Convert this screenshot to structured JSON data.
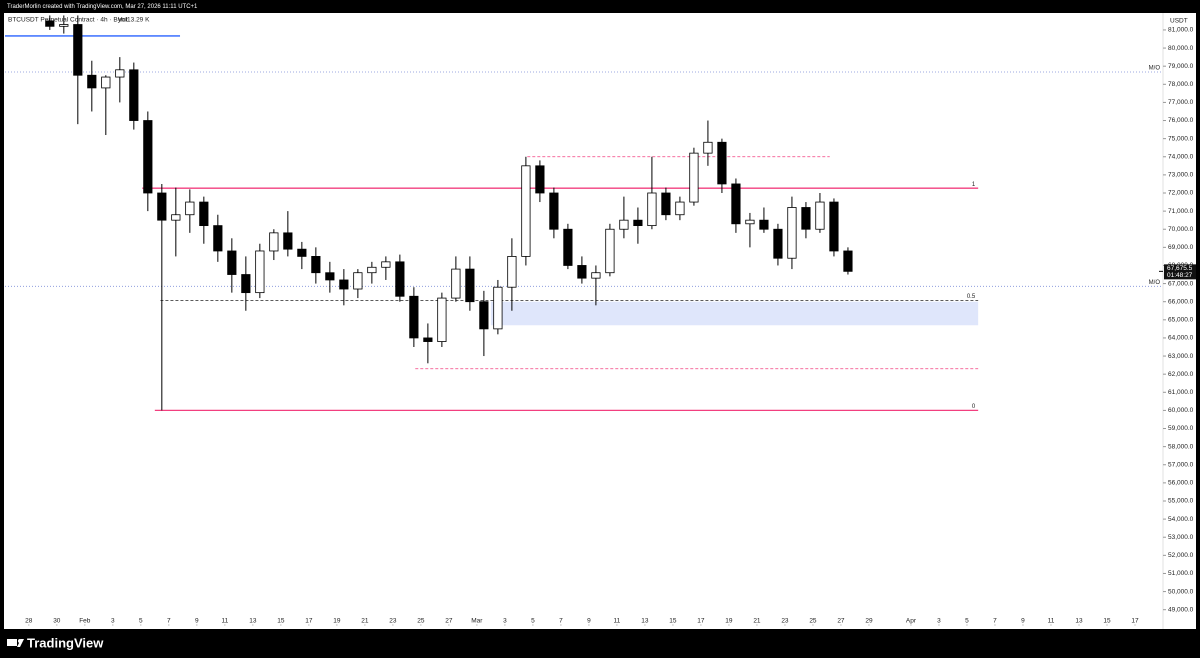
{
  "chart_data": {
    "type": "candlestick",
    "watermark": "TraderMorlin created with TradingView.com, Mar 27, 2026 11:11 UTC+1",
    "title": "BTCUSDT Perpetual Contract · 4h · Bybit",
    "volume_label": "Vol13.29 K",
    "currency": "USDT",
    "brand": "TradingView",
    "up_color": "#ffffff",
    "down_color": "#000000",
    "outline_color": "#000000",
    "x": [
      1.5,
      2.5,
      3.5,
      4.5,
      5.5,
      6.5,
      7.5,
      8.5,
      9.5,
      10.5,
      11.5,
      12.5,
      13.5,
      14.5,
      15.5,
      16.5,
      17.5,
      18.5,
      19.5,
      20.5,
      21.5,
      22.5,
      23.5,
      24.5,
      25.5,
      26.5,
      27.5,
      28.5,
      29.5,
      30.5,
      31.5,
      32.5,
      33.5,
      34.5,
      35.5,
      36.5,
      37.5,
      38.5,
      39.5,
      40.5,
      41.5,
      42.5,
      43.5,
      44.5,
      45.5,
      46.5,
      47.5,
      48.5,
      49.5,
      50.5,
      51.5,
      52.5,
      53.5,
      54.5,
      55.5,
      56.5,
      57.5,
      58.5
    ],
    "open": [
      81500,
      81200,
      81300,
      78500,
      77800,
      78400,
      78800,
      76000,
      72000,
      70500,
      70800,
      71500,
      70200,
      68800,
      67500,
      66500,
      68800,
      69800,
      68900,
      68500,
      67600,
      67200,
      66700,
      67600,
      67900,
      68200,
      66300,
      64000,
      63800,
      66200,
      67800,
      66000,
      64500,
      66800,
      68500,
      73500,
      72000,
      70000,
      68000,
      67300,
      67600,
      70000,
      70500,
      70200,
      72000,
      70800,
      71500,
      74200,
      74800,
      72500,
      70300,
      70500,
      70000,
      68400,
      71200,
      70000,
      71500,
      68800
    ],
    "high": [
      81800,
      81800,
      81800,
      79300,
      78500,
      79500,
      79200,
      76500,
      72500,
      72300,
      72200,
      71800,
      70800,
      69500,
      68500,
      69200,
      70000,
      71000,
      69300,
      69000,
      68200,
      67800,
      67800,
      68200,
      68500,
      68600,
      66800,
      64800,
      66500,
      68500,
      68500,
      66600,
      67200,
      69500,
      74000,
      73800,
      72300,
      70300,
      68500,
      68000,
      70300,
      71800,
      71200,
      74000,
      72300,
      71800,
      74500,
      76000,
      75000,
      72800,
      70900,
      71200,
      70300,
      71800,
      71500,
      72000,
      71700,
      69000
    ],
    "low": [
      81000,
      80800,
      75800,
      76500,
      75200,
      77000,
      75500,
      71000,
      60000,
      68500,
      69800,
      69200,
      68200,
      66500,
      65500,
      66200,
      68300,
      68500,
      67800,
      67000,
      66500,
      65800,
      66200,
      67000,
      67200,
      66000,
      63500,
      62600,
      63500,
      66000,
      65500,
      63000,
      64200,
      65500,
      68000,
      71500,
      69500,
      67800,
      67000,
      65800,
      67400,
      69500,
      69200,
      70000,
      70500,
      70500,
      71300,
      73500,
      72000,
      69800,
      69000,
      69800,
      68000,
      67800,
      69500,
      69800,
      68500,
      67500
    ],
    "close": [
      81200,
      81300,
      78500,
      77800,
      78400,
      78800,
      76000,
      72000,
      70500,
      70800,
      71500,
      70200,
      68800,
      67500,
      66500,
      68800,
      69800,
      68900,
      68500,
      67600,
      67200,
      66700,
      67600,
      67900,
      68200,
      66300,
      64000,
      63800,
      66200,
      67800,
      66000,
      64500,
      66800,
      68500,
      73500,
      72000,
      70000,
      68000,
      67300,
      67600,
      70000,
      70500,
      70200,
      72000,
      70800,
      71500,
      74200,
      74800,
      72500,
      70300,
      70500,
      70000,
      68400,
      71200,
      70000,
      71500,
      68800,
      67675.5
    ],
    "price_tag": {
      "value": 67675.5,
      "label": "67,675.5",
      "timer": "01:48:27"
    },
    "levels": [
      {
        "value": 80670,
        "x": [
          -1.7,
          10.8
        ],
        "color": "#2962ff",
        "style": "solid"
      },
      {
        "value": 78680,
        "x": [
          -1.7,
          81
        ],
        "color": "#7f8fd8",
        "style": "dotted",
        "label": "M/O"
      },
      {
        "value": 74000,
        "x": [
          35.6,
          57.2
        ],
        "color": "#f23f7f",
        "style": "dashed"
      },
      {
        "value": 72266,
        "x": [
          8.1,
          67.8
        ],
        "color": "#f23f7f",
        "style": "solid",
        "label": "1"
      },
      {
        "value": 66850,
        "x": [
          -1.7,
          81
        ],
        "color": "#7f8fd8",
        "style": "dotted",
        "label": "M/O"
      },
      {
        "value": 66070,
        "x": [
          9.4,
          67.8
        ],
        "color": "#444444",
        "style": "dashed",
        "label": "0.5"
      },
      {
        "value": 62300,
        "x": [
          27.6,
          67.8
        ],
        "color": "#f23f7f",
        "style": "dashed"
      },
      {
        "value": 60000,
        "x": [
          9.0,
          67.8
        ],
        "color": "#f23f7f",
        "style": "solid",
        "label": "0"
      }
    ],
    "band": {
      "from": 64700,
      "to": 66000,
      "x": [
        33,
        67.8
      ],
      "color": "#dfe6fb"
    },
    "xlim": [
      -1.7,
      81
    ],
    "ylim": [
      48100,
      81880
    ],
    "xticks": [
      {
        "value": 0,
        "label": "28"
      },
      {
        "value": 2,
        "label": "30"
      },
      {
        "value": 4,
        "label": "Feb"
      },
      {
        "value": 6,
        "label": "3"
      },
      {
        "value": 8,
        "label": "5"
      },
      {
        "value": 10,
        "label": "7"
      },
      {
        "value": 12,
        "label": "9"
      },
      {
        "value": 14,
        "label": "11"
      },
      {
        "value": 16,
        "label": "13"
      },
      {
        "value": 18,
        "label": "15"
      },
      {
        "value": 20,
        "label": "17"
      },
      {
        "value": 22,
        "label": "19"
      },
      {
        "value": 24,
        "label": "21"
      },
      {
        "value": 26,
        "label": "23"
      },
      {
        "value": 28,
        "label": "25"
      },
      {
        "value": 30,
        "label": "27"
      },
      {
        "value": 32,
        "label": "Mar"
      },
      {
        "value": 34,
        "label": "3"
      },
      {
        "value": 36,
        "label": "5"
      },
      {
        "value": 38,
        "label": "7"
      },
      {
        "value": 40,
        "label": "9"
      },
      {
        "value": 42,
        "label": "11"
      },
      {
        "value": 44,
        "label": "13"
      },
      {
        "value": 46,
        "label": "15"
      },
      {
        "value": 48,
        "label": "17"
      },
      {
        "value": 50,
        "label": "19"
      },
      {
        "value": 52,
        "label": "21"
      },
      {
        "value": 54,
        "label": "23"
      },
      {
        "value": 56,
        "label": "25"
      },
      {
        "value": 58,
        "label": "27"
      },
      {
        "value": 60,
        "label": "29"
      },
      {
        "value": 63,
        "label": "Apr"
      },
      {
        "value": 65,
        "label": "3"
      },
      {
        "value": 67,
        "label": "5"
      },
      {
        "value": 69,
        "label": "7"
      },
      {
        "value": 71,
        "label": "9"
      },
      {
        "value": 73,
        "label": "11"
      },
      {
        "value": 75,
        "label": "13"
      },
      {
        "value": 77,
        "label": "15"
      },
      {
        "value": 79,
        "label": "17"
      }
    ],
    "yticks": [
      {
        "value": 81000,
        "label": "81,000.0"
      },
      {
        "value": 80000,
        "label": "80,000.0"
      },
      {
        "value": 79000,
        "label": "79,000.0"
      },
      {
        "value": 78000,
        "label": "78,000.0"
      },
      {
        "value": 77000,
        "label": "77,000.0"
      },
      {
        "value": 76000,
        "label": "76,000.0"
      },
      {
        "value": 75000,
        "label": "75,000.0"
      },
      {
        "value": 74000,
        "label": "74,000.0"
      },
      {
        "value": 73000,
        "label": "73,000.0"
      },
      {
        "value": 72000,
        "label": "72,000.0"
      },
      {
        "value": 71000,
        "label": "71,000.0"
      },
      {
        "value": 70000,
        "label": "70,000.0"
      },
      {
        "value": 69000,
        "label": "69,000.0"
      },
      {
        "value": 68000,
        "label": "68,000.0"
      },
      {
        "value": 67000,
        "label": "67,000.0"
      },
      {
        "value": 66000,
        "label": "66,000.0"
      },
      {
        "value": 65000,
        "label": "65,000.0"
      },
      {
        "value": 64000,
        "label": "64,000.0"
      },
      {
        "value": 63000,
        "label": "63,000.0"
      },
      {
        "value": 62000,
        "label": "62,000.0"
      },
      {
        "value": 61000,
        "label": "61,000.0"
      },
      {
        "value": 60000,
        "label": "60,000.0"
      },
      {
        "value": 59000,
        "label": "59,000.0"
      },
      {
        "value": 58000,
        "label": "58,000.0"
      },
      {
        "value": 57000,
        "label": "57,000.0"
      },
      {
        "value": 56000,
        "label": "56,000.0"
      },
      {
        "value": 55000,
        "label": "55,000.0"
      },
      {
        "value": 54000,
        "label": "54,000.0"
      },
      {
        "value": 53000,
        "label": "53,000.0"
      },
      {
        "value": 52000,
        "label": "52,000.0"
      },
      {
        "value": 51000,
        "label": "51,000.0"
      },
      {
        "value": 50000,
        "label": "50,000.0"
      },
      {
        "value": 49000,
        "label": "49,000.0"
      }
    ],
    "grid": false
  }
}
